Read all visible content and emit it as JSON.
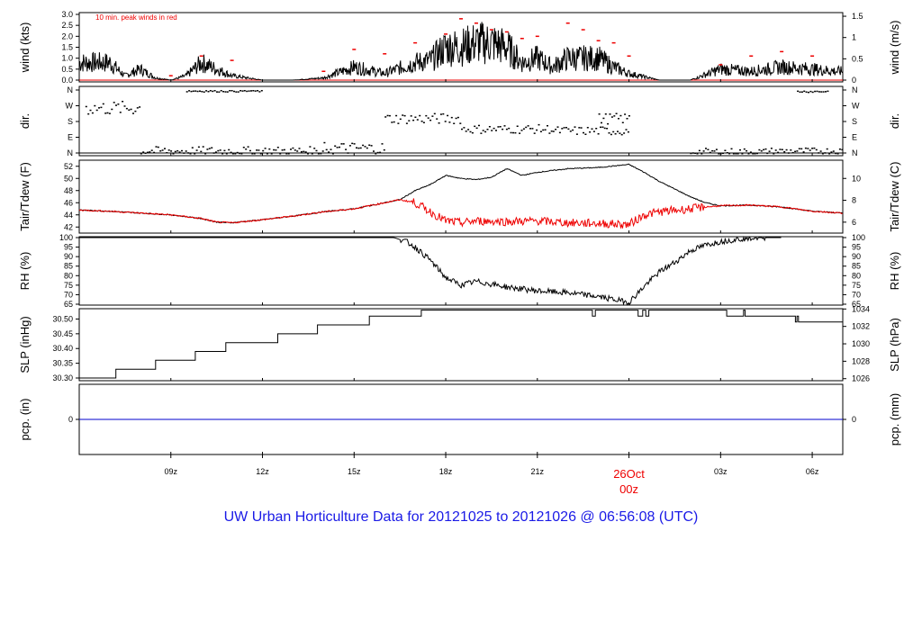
{
  "title": "UW Urban Horticulture Data for 20121025  to  20121026 @ 06:56:08  (UTC)",
  "colors": {
    "primary": "#000000",
    "peak": "#ee0000",
    "dewpoint": "#ee0000",
    "precip": "#0000cc",
    "title": "#1a1ae6"
  },
  "x_axis": {
    "ticks": [
      {
        "hour": 9,
        "label": "09z"
      },
      {
        "hour": 12,
        "label": "12z"
      },
      {
        "hour": 15,
        "label": "15z"
      },
      {
        "hour": 18,
        "label": "18z"
      },
      {
        "hour": 21,
        "label": "21z"
      },
      {
        "hour": 24,
        "label": "00z"
      },
      {
        "hour": 27,
        "label": "03z"
      },
      {
        "hour": 30,
        "label": "06z"
      }
    ],
    "day_label": "26Oct",
    "day_hour_label": "00z"
  },
  "chart_data": [
    {
      "type": "line",
      "panel": "wind",
      "left_label": "wind (kts)",
      "right_label": "wind (m/s)",
      "left_ticks": [
        "0.0",
        "0.5",
        "1.0",
        "1.5",
        "2.0",
        "2.5",
        "3.0"
      ],
      "right_ticks": [
        "0",
        "0.5",
        "1",
        "1.5"
      ],
      "ylim": [
        0,
        3.0
      ],
      "annotation": "10 min. peak winds in red",
      "series": [
        {
          "values_hours": [
            7.0,
            7.5,
            8.0,
            8.5,
            9.0,
            9.5,
            10.0,
            11.0,
            12.0,
            13.0,
            14.0,
            15.0,
            16.0,
            17.0,
            17.5,
            18.0,
            18.5,
            19.0,
            19.5,
            20.0,
            20.5,
            21.0,
            21.5,
            22.0,
            22.5,
            23.0,
            23.5,
            24.0,
            25.0,
            26.0,
            27.0,
            28.0,
            29.0,
            30.0,
            30.8
          ],
          "values": [
            0.8,
            0.2,
            0.5,
            0.1,
            0.0,
            0.2,
            0.8,
            0.2,
            0.0,
            0.0,
            0.1,
            0.6,
            0.3,
            0.8,
            0.9,
            1.5,
            1.5,
            1.7,
            1.7,
            1.5,
            0.8,
            1.0,
            0.6,
            1.0,
            1.0,
            1.0,
            0.6,
            0.3,
            0.0,
            0.0,
            0.5,
            0.4,
            0.6,
            0.5,
            0.4
          ]
        },
        {
          "values_hours": [
            9.0,
            10.0,
            11.0,
            14.0,
            15.0,
            16.0,
            17.0,
            18.0,
            18.5,
            19.0,
            19.5,
            20.0,
            20.5,
            21.0,
            22.0,
            22.5,
            23.0,
            23.5,
            24.0,
            27.0,
            28.0,
            29.0,
            30.0
          ],
          "values": [
            0.2,
            1.1,
            0.9,
            0.4,
            1.4,
            1.2,
            1.7,
            2.1,
            2.8,
            2.6,
            2.3,
            2.2,
            1.9,
            2.0,
            2.6,
            2.3,
            1.8,
            1.7,
            1.1,
            0.7,
            1.1,
            1.3,
            1.1
          ]
        }
      ]
    },
    {
      "type": "scatter",
      "panel": "direction",
      "left_label": "dir.",
      "right_label": "dir.",
      "ticks": [
        "N",
        "E",
        "S",
        "W",
        "N"
      ],
      "ylim": [
        0,
        360
      ]
    },
    {
      "type": "line",
      "panel": "temperature",
      "left_label": "Tair/Tdew (F)",
      "right_label": "Tair/Tdew (C)",
      "left_ticks": [
        "42",
        "44",
        "46",
        "48",
        "50",
        "52"
      ],
      "right_ticks": [
        "6",
        "8",
        "10"
      ],
      "ylim": [
        41,
        53
      ],
      "series": [
        {
          "x_hours": [
            6.0,
            7.0,
            8.0,
            9.0,
            10.0,
            10.5,
            11.0,
            12.0,
            13.0,
            14.0,
            15.0,
            16.0,
            16.5,
            17.0,
            17.5,
            18.0,
            18.5,
            19.0,
            19.5,
            20.0,
            20.5,
            21.0,
            22.0,
            23.0,
            24.0,
            24.5,
            25.0,
            26.0,
            26.5,
            27.0,
            28.0,
            29.0,
            30.0,
            31.0
          ],
          "values": [
            44.8,
            44.6,
            44.3,
            44.0,
            43.4,
            42.8,
            42.7,
            43.2,
            43.8,
            44.5,
            45.0,
            46.0,
            46.5,
            48.0,
            49.0,
            50.5,
            50.0,
            49.8,
            50.2,
            51.6,
            50.5,
            51.0,
            51.6,
            51.8,
            52.3,
            51.0,
            49.5,
            47.0,
            46.0,
            45.5,
            45.6,
            45.3,
            44.6,
            44.3
          ]
        },
        {
          "x_hours": [
            6.0,
            7.0,
            8.0,
            9.0,
            10.0,
            10.5,
            11.0,
            12.0,
            13.0,
            14.0,
            15.0,
            16.0,
            16.5,
            17.0,
            17.5,
            18.0,
            18.5,
            19.0,
            20.0,
            21.0,
            22.0,
            23.0,
            24.0,
            24.5,
            25.0,
            26.0,
            26.5,
            27.0,
            28.0,
            29.0,
            30.0,
            31.0
          ],
          "values": [
            44.8,
            44.6,
            44.3,
            44.0,
            43.4,
            42.8,
            42.7,
            43.2,
            43.8,
            44.5,
            45.0,
            46.0,
            46.5,
            46.0,
            44.5,
            43.0,
            42.7,
            43.0,
            42.9,
            43.0,
            42.7,
            42.6,
            42.4,
            44.0,
            44.5,
            45.0,
            45.3,
            45.5,
            45.6,
            45.3,
            44.6,
            44.3
          ]
        }
      ]
    },
    {
      "type": "line",
      "panel": "humidity",
      "left_label": "RH (%)",
      "right_label": "RH (%)",
      "ticks": [
        "65",
        "70",
        "75",
        "80",
        "85",
        "90",
        "95",
        "100"
      ],
      "ylim": [
        65,
        100
      ],
      "x_hours": [
        6.0,
        16.3,
        16.7,
        17.0,
        17.5,
        18.0,
        18.5,
        19.0,
        20.0,
        21.0,
        22.0,
        23.0,
        24.0,
        24.3,
        24.6,
        25.0,
        25.5,
        26.0,
        26.5,
        27.0,
        28.0,
        29.0
      ],
      "values": [
        100,
        100,
        98,
        95,
        88,
        79,
        75,
        77,
        74,
        72,
        71,
        69,
        66,
        71,
        76,
        82,
        87,
        93,
        96,
        98,
        100,
        100
      ]
    },
    {
      "type": "line",
      "panel": "pressure",
      "left_label": "SLP (inHg)",
      "right_label": "SLP (hPa)",
      "left_ticks": [
        "30.30",
        "30.35",
        "30.40",
        "30.45",
        "30.50"
      ],
      "right_ticks": [
        "1026",
        "1028",
        "1030",
        "1032",
        "1034"
      ],
      "ylim": [
        30.3,
        30.535
      ],
      "x_hours": [
        6.0,
        7.2,
        8.5,
        9.8,
        10.8,
        12.5,
        13.8,
        15.5,
        17.2,
        22.7,
        22.8,
        22.9,
        24.2,
        24.3,
        24.45,
        24.55,
        24.65,
        27.2,
        27.7,
        27.75,
        27.8,
        29.4,
        29.45,
        29.5,
        29.55,
        30.0,
        31.0
      ],
      "values": [
        30.3,
        30.33,
        30.36,
        30.39,
        30.42,
        30.45,
        30.48,
        30.51,
        30.53,
        30.53,
        30.51,
        30.53,
        30.53,
        30.51,
        30.53,
        30.51,
        30.53,
        30.51,
        30.51,
        30.53,
        30.51,
        30.51,
        30.49,
        30.51,
        30.49,
        30.49,
        30.49
      ]
    },
    {
      "type": "line",
      "panel": "precipitation",
      "left_label": "pcp. (in)",
      "right_label": "pcp. (mm)",
      "left_ticks": [
        "0"
      ],
      "right_ticks": [
        "0"
      ],
      "x_hours": [
        6.0,
        31.0
      ],
      "values": [
        0,
        0
      ]
    }
  ]
}
